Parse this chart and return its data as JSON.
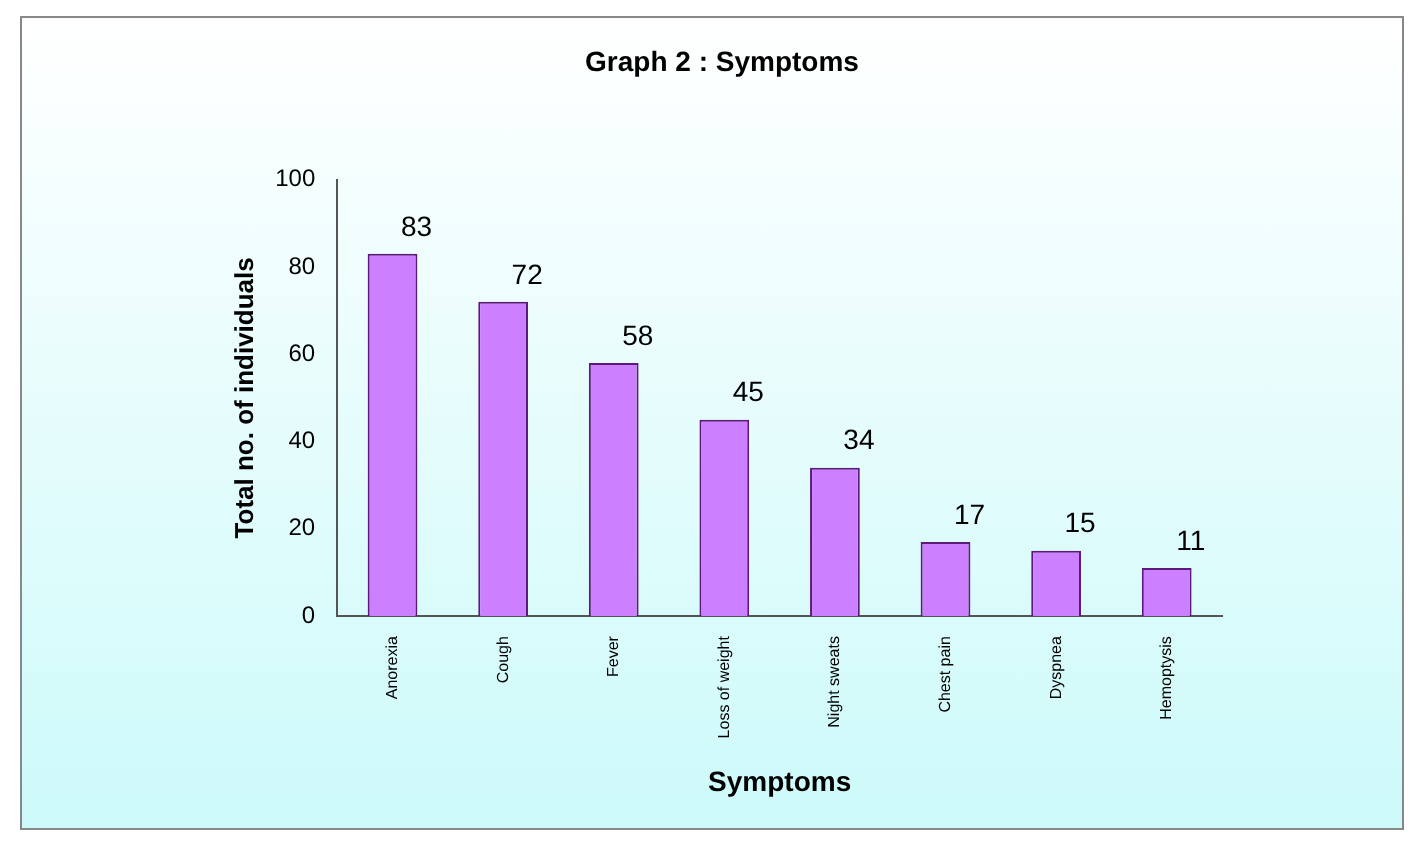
{
  "chart_data": {
    "type": "bar",
    "title": "Graph 2 : Symptoms",
    "xlabel": "Symptoms",
    "ylabel": "Total no. of individuals",
    "categories": [
      "Anorexia",
      "Cough",
      "Fever",
      "Loss of weight",
      "Night sweats",
      "Chest pain",
      "Dyspnea",
      "Hemoptysis"
    ],
    "values": [
      83,
      72,
      58,
      45,
      34,
      17,
      15,
      11
    ],
    "color": "#cc80ff",
    "ylim": [
      0,
      100
    ],
    "yticks": [
      0,
      20,
      40,
      60,
      80,
      100
    ],
    "grid": false,
    "legend": false,
    "data_labels": true
  }
}
